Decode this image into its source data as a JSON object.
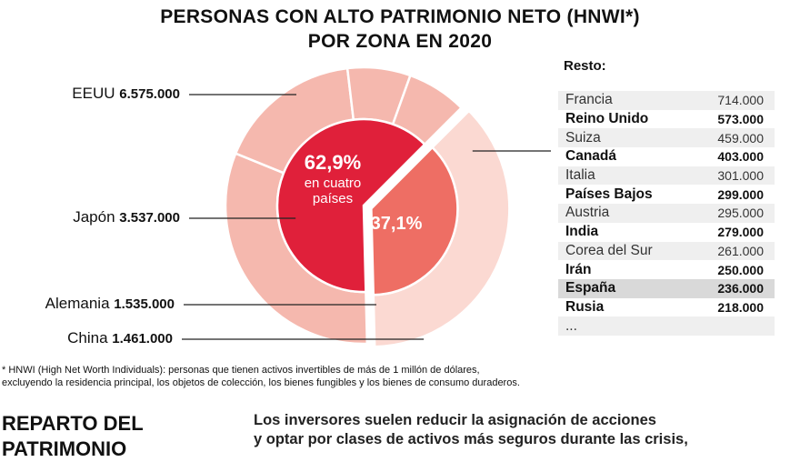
{
  "header": {
    "title_line1": "PERSONAS CON ALTO PATRIMONIO NETO (HNWI*)",
    "title_line2": "POR ZONA EN 2020"
  },
  "chart_data": {
    "type": "pie",
    "title": "PERSONAS CON ALTO PATRIMONIO NETO (HNWI*) POR ZONA EN 2020",
    "inner": [
      {
        "label": "62,9%",
        "sublabel_1": "en cuatro",
        "sublabel_2": "países",
        "percent": 62.9
      },
      {
        "label": "37,1%",
        "percent": 37.1
      }
    ],
    "outer": [
      {
        "name": "EEUU",
        "value_label": "6.575.000",
        "value": 6575000
      },
      {
        "name": "Japón",
        "value_label": "3.537.000",
        "value": 3537000
      },
      {
        "name": "Alemania",
        "value_label": "1.535.000",
        "value": 1535000
      },
      {
        "name": "China",
        "value_label": "1.461.000",
        "value": 1461000
      }
    ],
    "colors": {
      "inner_main": "#e0203a",
      "inner_rest": "#ee6e64",
      "outer_main": "#f5b8ae",
      "outer_rest": "#fbd9d2",
      "separator": "#ffffff"
    }
  },
  "resto": {
    "title": "Resto:",
    "rows": [
      {
        "country": "Francia",
        "value": "714.000",
        "bold": false
      },
      {
        "country": "Reino Unido",
        "value": "573.000",
        "bold": true
      },
      {
        "country": "Suiza",
        "value": "459.000",
        "bold": false
      },
      {
        "country": "Canadá",
        "value": "403.000",
        "bold": true
      },
      {
        "country": "Italia",
        "value": "301.000",
        "bold": false
      },
      {
        "country": "Países Bajos",
        "value": "299.000",
        "bold": true
      },
      {
        "country": "Austria",
        "value": "295.000",
        "bold": false
      },
      {
        "country": "India",
        "value": "279.000",
        "bold": true
      },
      {
        "country": "Corea del Sur",
        "value": "261.000",
        "bold": false
      },
      {
        "country": "Irán",
        "value": "250.000",
        "bold": true
      },
      {
        "country": "España",
        "value": "236.000",
        "bold": true,
        "highlight": true
      },
      {
        "country": "Rusia",
        "value": "218.000",
        "bold": true
      },
      {
        "country": "...",
        "value": "",
        "bold": false
      }
    ]
  },
  "footnote": {
    "line1": "* HNWI (High Net Worth Individuals): personas que tienen activos invertibles de más de 1 millón de dólares,",
    "line2": "excluyendo la residencia principal, los objetos de colección, los bienes fungibles y los bienes de consumo duraderos."
  },
  "section": {
    "title_line1": "REPARTO DEL",
    "title_line2": "PATRIMONIO"
  },
  "body": {
    "line1": "Los inversores suelen reducir la asignación de acciones",
    "line2": "y optar por clases de activos más seguros durante las crisis,"
  }
}
